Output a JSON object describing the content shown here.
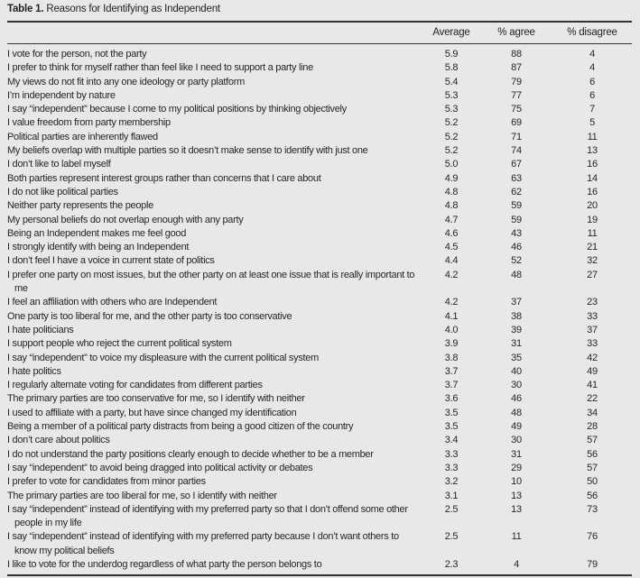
{
  "colors": {
    "background": "#e8e8e6",
    "text": "#262626",
    "rule": "#333331"
  },
  "table": {
    "title_label": "Table 1.",
    "title_text": "Reasons for Identifying as Independent",
    "columns": [
      "",
      "Average",
      "% agree",
      "% disagree"
    ],
    "rows": [
      {
        "reason": "I vote for the person, not the party",
        "average": "5.9",
        "agree": "88",
        "disagree": "4"
      },
      {
        "reason": "I prefer to think for myself rather than feel like I need to support a party line",
        "average": "5.8",
        "agree": "87",
        "disagree": "4"
      },
      {
        "reason": "My views do not fit into any one ideology or party platform",
        "average": "5.4",
        "agree": "79",
        "disagree": "6"
      },
      {
        "reason": "I’m independent by nature",
        "average": "5.3",
        "agree": "77",
        "disagree": "6"
      },
      {
        "reason": "I say “independent” because I come to my political positions by thinking objectively",
        "average": "5.3",
        "agree": "75",
        "disagree": "7"
      },
      {
        "reason": "I value freedom from party membership",
        "average": "5.2",
        "agree": "69",
        "disagree": "5"
      },
      {
        "reason": "Political parties are inherently flawed",
        "average": "5.2",
        "agree": "71",
        "disagree": "11"
      },
      {
        "reason": "My beliefs overlap with multiple parties so it doesn’t make sense to identify with just one",
        "average": "5.2",
        "agree": "74",
        "disagree": "13"
      },
      {
        "reason": "I don’t like to label myself",
        "average": "5.0",
        "agree": "67",
        "disagree": "16"
      },
      {
        "reason": "Both parties represent interest groups rather than concerns that I care about",
        "average": "4.9",
        "agree": "63",
        "disagree": "14"
      },
      {
        "reason": "I do not like political parties",
        "average": "4.8",
        "agree": "62",
        "disagree": "16"
      },
      {
        "reason": "Neither party represents the people",
        "average": "4.8",
        "agree": "59",
        "disagree": "20"
      },
      {
        "reason": "My personal beliefs do not overlap enough with any party",
        "average": "4.7",
        "agree": "59",
        "disagree": "19"
      },
      {
        "reason": "Being an Independent makes me feel good",
        "average": "4.6",
        "agree": "43",
        "disagree": "11"
      },
      {
        "reason": "I strongly identify with being an Independent",
        "average": "4.5",
        "agree": "46",
        "disagree": "21"
      },
      {
        "reason": "I don’t feel I have a voice in current state of politics",
        "average": "4.4",
        "agree": "52",
        "disagree": "32"
      },
      {
        "reason": "I prefer one party on most issues, but the other party on at least one issue that is really important to me",
        "average": "4.2",
        "agree": "48",
        "disagree": "27"
      },
      {
        "reason": "I feel an affiliation with others who are Independent",
        "average": "4.2",
        "agree": "37",
        "disagree": "23"
      },
      {
        "reason": "One party is too liberal for me, and the other party is too conservative",
        "average": "4.1",
        "agree": "38",
        "disagree": "33"
      },
      {
        "reason": "I hate politicians",
        "average": "4.0",
        "agree": "39",
        "disagree": "37"
      },
      {
        "reason": "I support people who reject the current political system",
        "average": "3.9",
        "agree": "31",
        "disagree": "33"
      },
      {
        "reason": "I say “independent” to voice my displeasure with the current political system",
        "average": "3.8",
        "agree": "35",
        "disagree": "42"
      },
      {
        "reason": "I hate politics",
        "average": "3.7",
        "agree": "40",
        "disagree": "49"
      },
      {
        "reason": "I regularly alternate voting for candidates from different parties",
        "average": "3.7",
        "agree": "30",
        "disagree": "41"
      },
      {
        "reason": "The primary parties are too conservative for me, so I identify with neither",
        "average": "3.6",
        "agree": "46",
        "disagree": "22"
      },
      {
        "reason": "I used to affiliate with a party, but have since changed my identification",
        "average": "3.5",
        "agree": "48",
        "disagree": "34"
      },
      {
        "reason": "Being a member of a political party distracts from being a good citizen of the country",
        "average": "3.5",
        "agree": "49",
        "disagree": "28"
      },
      {
        "reason": "I don’t care about politics",
        "average": "3.4",
        "agree": "30",
        "disagree": "57"
      },
      {
        "reason": "I do not understand the party positions clearly enough to decide whether to be a member",
        "average": "3.3",
        "agree": "31",
        "disagree": "56"
      },
      {
        "reason": "I say “independent” to avoid being dragged into political activity or debates",
        "average": "3.3",
        "agree": "29",
        "disagree": "57"
      },
      {
        "reason": "I prefer to vote for candidates from minor parties",
        "average": "3.2",
        "agree": "10",
        "disagree": "50"
      },
      {
        "reason": "The primary parties are too liberal for me, so I identify with neither",
        "average": "3.1",
        "agree": "13",
        "disagree": "56"
      },
      {
        "reason": "I say “independent” instead of identifying with my preferred party so that I don’t offend some other people in my life",
        "average": "2.5",
        "agree": "13",
        "disagree": "73"
      },
      {
        "reason": "I say “independent” instead of identifying with my preferred party because I don’t want others to know my political beliefs",
        "average": "2.5",
        "agree": "11",
        "disagree": "76"
      },
      {
        "reason": "I like to vote for the underdog regardless of what party the person belongs to",
        "average": "2.3",
        "agree": "4",
        "disagree": "79"
      }
    ]
  }
}
